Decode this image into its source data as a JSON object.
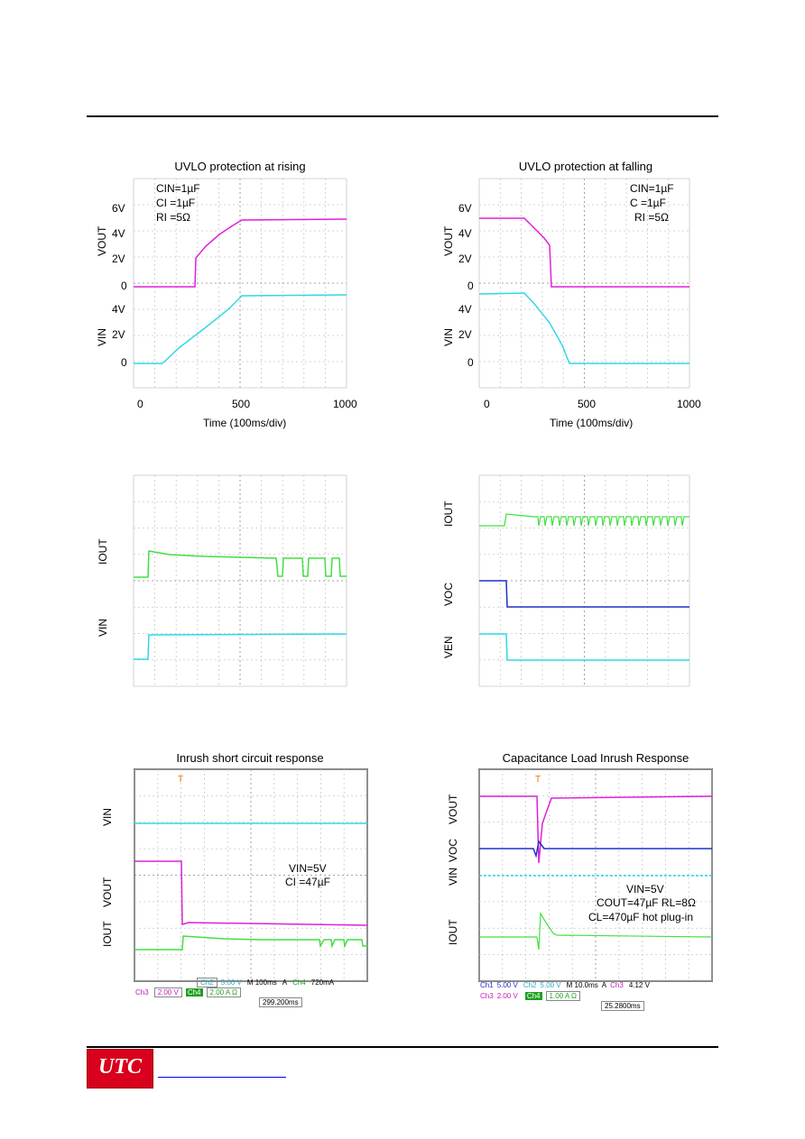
{
  "logo": {
    "text": "UTC"
  },
  "panels": {
    "p1": {
      "title": "UVLO protection at rising",
      "notes": [
        "CIN=1µF",
        "CI =1µF",
        "RI =5Ω"
      ],
      "vout_ticks": [
        "6V",
        "4V",
        "2V",
        "0"
      ],
      "vin_ticks": [
        "4V",
        "2V",
        "0"
      ],
      "x_ticks": [
        "0",
        "500",
        "1000"
      ],
      "xlabel": "Time (100ms/div)",
      "ylabel_top": "VOUT",
      "ylabel_bottom": "VIN"
    },
    "p2": {
      "title": "UVLO protection at falling",
      "notes": [
        "CIN=1µF",
        "C =1µF",
        "RI =5Ω"
      ],
      "vout_ticks": [
        "6V",
        "4V",
        "2V",
        "0"
      ],
      "vin_ticks": [
        "4V",
        "2V",
        "0"
      ],
      "x_ticks": [
        "0",
        "500",
        "1000"
      ],
      "xlabel": "Time (100ms/div)",
      "ylabel_top": "VOUT",
      "ylabel_bottom": "VIN"
    },
    "p3": {
      "ylabel_top": "IOUT",
      "ylabel_bottom": "VIN"
    },
    "p4": {
      "ylabel_1": "IOUT",
      "ylabel_2": "VOC",
      "ylabel_3": "VEN"
    },
    "p5": {
      "title": "Inrush short circuit response",
      "notes": [
        "VIN=5V",
        "CI =47µF"
      ],
      "ylabel_1": "VIN",
      "ylabel_2": "VOUT",
      "ylabel_3": "IOUT",
      "info_row1": [
        "Ch2",
        "5.00 V",
        "M 100ms",
        "A",
        "Ch4",
        "720mA"
      ],
      "info_row2": [
        "Ch3",
        "2.00 V",
        "Ch4",
        "2.00 A Ω"
      ],
      "info_row3": "299.200ms"
    },
    "p6": {
      "title": "Capacitance Load Inrush Response",
      "notes": [
        "VIN=5V",
        "COUT=47µF RL=8Ω",
        "CL=470µF hot plug-in"
      ],
      "ylabel_1": "VOUT",
      "ylabel_2": "VOC",
      "ylabel_3": "VIN",
      "ylabel_4": "IOUT",
      "info_row1": [
        "Ch1",
        "5.00 V",
        "Ch2",
        "5.00 V",
        "M 10.0ms",
        "A",
        "Ch3",
        "4.12 V"
      ],
      "info_row2": [
        "Ch3",
        "2.00 V",
        "Ch4",
        "1.00 A Ω"
      ],
      "info_row3": "25.2800ms"
    }
  },
  "colors": {
    "magenta": "#e020d8",
    "cyan": "#30d8e8",
    "green": "#40e040",
    "blue": "#2030c8",
    "grid": "#c8c8c8"
  }
}
